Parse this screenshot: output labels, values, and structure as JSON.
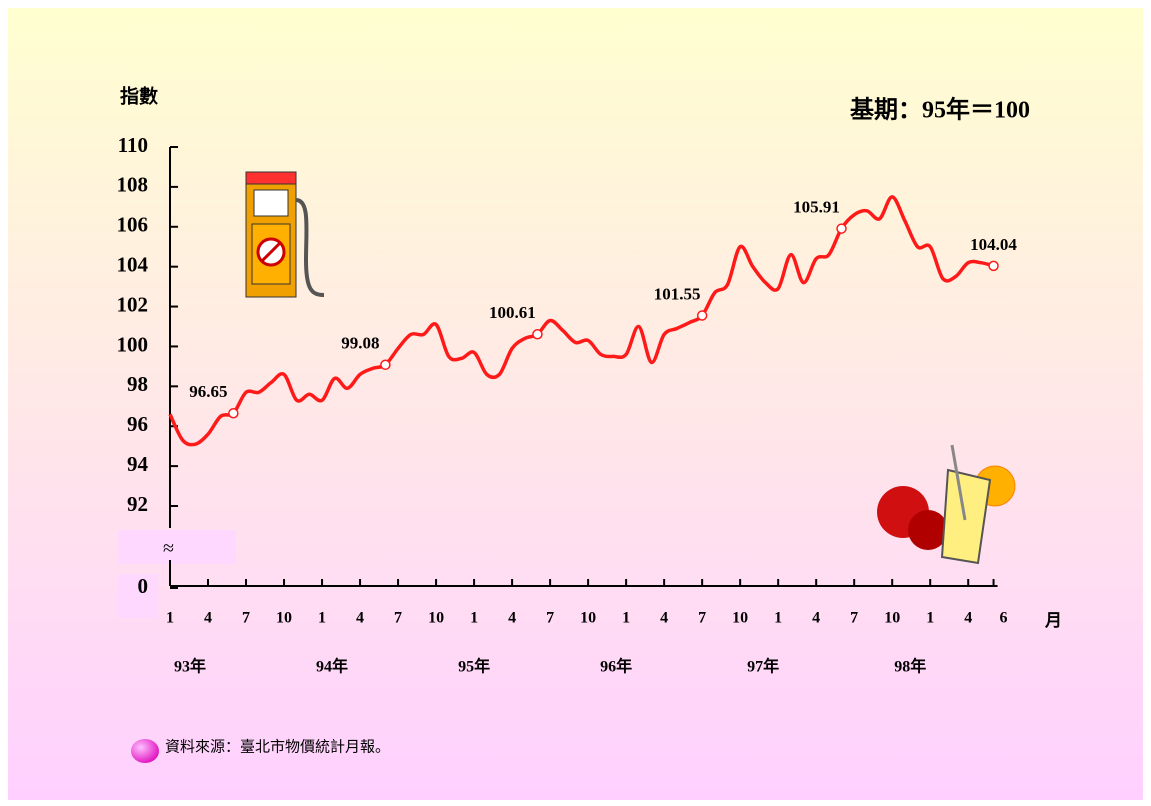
{
  "chart_data": {
    "type": "line",
    "y_label": "指數",
    "subtitle": "基期：95年＝100",
    "x_unit": "月",
    "source": "資料來源：臺北市物價統計月報。",
    "categories": [
      "1",
      null,
      null,
      "4",
      null,
      null,
      "7",
      null,
      null,
      "10",
      null,
      null,
      "1",
      null,
      null,
      "4",
      null,
      null,
      "7",
      null,
      null,
      "10",
      null,
      null,
      "1",
      null,
      null,
      "4",
      null,
      null,
      "7",
      null,
      null,
      "10",
      null,
      null,
      "1",
      null,
      null,
      "4",
      null,
      null,
      "7",
      null,
      null,
      "10",
      null,
      null,
      "1",
      null,
      null,
      "4",
      null,
      null,
      "7",
      null,
      null,
      "10",
      null,
      null,
      "1",
      null,
      null,
      "4",
      null,
      "6"
    ],
    "year_labels": [
      "93年",
      "94年",
      "95年",
      "96年",
      "97年",
      "98年"
    ],
    "series": [
      {
        "color": "#ff1a1a",
        "values": [
          96.6,
          95.3,
          95.1,
          95.6,
          96.5,
          96.65,
          97.7,
          97.7,
          98.2,
          98.6,
          97.3,
          97.6,
          97.3,
          98.4,
          97.9,
          98.6,
          98.9,
          99.08,
          99.9,
          100.6,
          100.6,
          101.1,
          99.5,
          99.4,
          99.7,
          98.6,
          98.6,
          99.9,
          100.4,
          100.61,
          101.3,
          100.8,
          100.2,
          100.3,
          99.6,
          99.5,
          99.6,
          101.0,
          99.2,
          100.6,
          100.9,
          101.2,
          101.55,
          102.7,
          103.1,
          105.0,
          104.0,
          103.2,
          102.9,
          104.6,
          103.2,
          104.4,
          104.6,
          105.91,
          106.6,
          106.8,
          106.4,
          107.5,
          106.3,
          105.0,
          105.0,
          103.4,
          103.5,
          104.2,
          104.2,
          104.04
        ],
        "value_labels": [
          null,
          null,
          null,
          null,
          null,
          "96.65",
          null,
          null,
          null,
          null,
          null,
          null,
          null,
          null,
          null,
          null,
          null,
          "99.08",
          null,
          null,
          null,
          null,
          null,
          null,
          null,
          null,
          null,
          null,
          null,
          "100.61",
          null,
          null,
          null,
          null,
          null,
          null,
          null,
          null,
          null,
          null,
          null,
          null,
          "101.55",
          null,
          null,
          null,
          null,
          null,
          null,
          null,
          null,
          null,
          null,
          "105.91",
          null,
          null,
          null,
          null,
          null,
          null,
          null,
          null,
          null,
          null,
          null,
          "104.04"
        ]
      }
    ],
    "ylim": [
      0,
      110
    ],
    "yticks": [
      0,
      92,
      94,
      96,
      98,
      100,
      102,
      104,
      106,
      108,
      110
    ],
    "axis_break": true
  }
}
